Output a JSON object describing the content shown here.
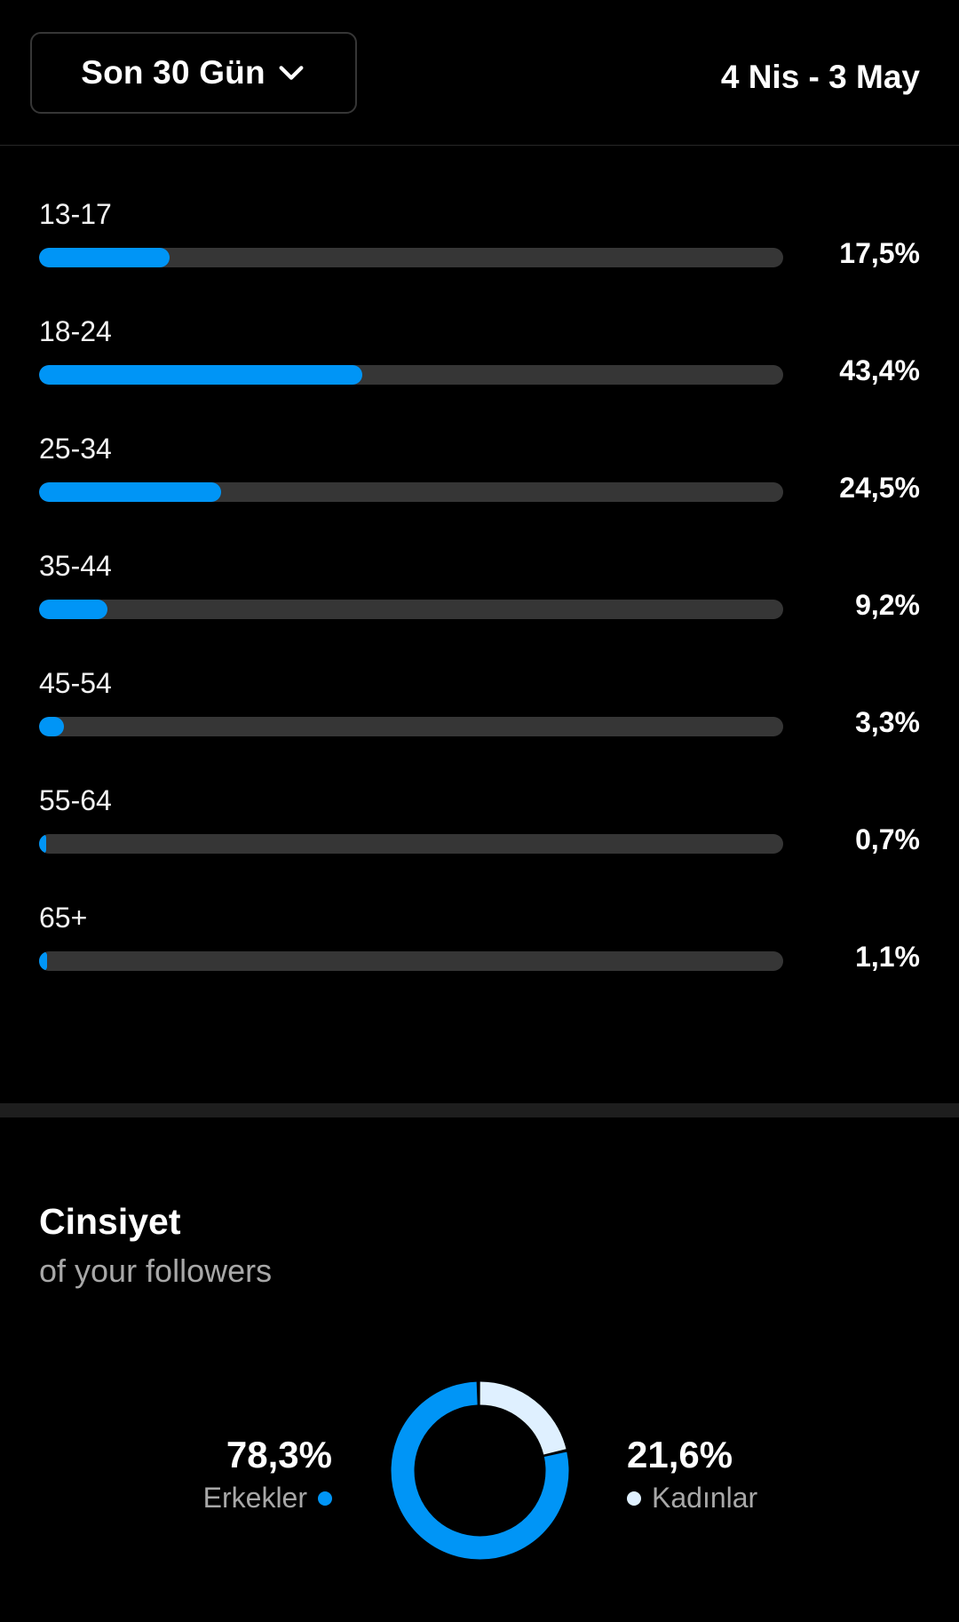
{
  "header": {
    "range_label": "Son 30 Gün",
    "date_range": "4 Nis - 3 May"
  },
  "age_groups": [
    {
      "label": "13-17",
      "percent_text": "17,5%",
      "fill": 0.175
    },
    {
      "label": "18-24",
      "percent_text": "43,4%",
      "fill": 0.434
    },
    {
      "label": "25-34",
      "percent_text": "24,5%",
      "fill": 0.245
    },
    {
      "label": "35-44",
      "percent_text": "9,2%",
      "fill": 0.092
    },
    {
      "label": "45-54",
      "percent_text": "3,3%",
      "fill": 0.033
    },
    {
      "label": "55-64",
      "percent_text": "0,7%",
      "fill": 0.007
    },
    {
      "label": "65+",
      "percent_text": "1,1%",
      "fill": 0.011
    }
  ],
  "gender": {
    "title": "Cinsiyet",
    "subtitle": "of your followers",
    "men": {
      "label": "Erkekler",
      "value_text": "78,3%",
      "share": 0.783
    },
    "women": {
      "label": "Kadınlar",
      "value_text": "21,6%",
      "share": 0.216
    }
  },
  "colors": {
    "accent": "#0095f6",
    "women": "#dff0ff",
    "track": "#363636",
    "background": "#000000"
  }
}
